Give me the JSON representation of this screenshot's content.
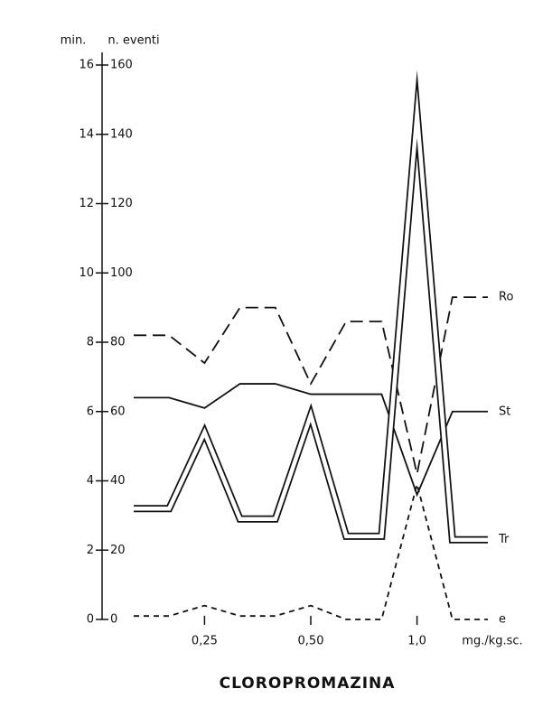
{
  "chart_data": {
    "type": "line",
    "title": "CLOROPROMAZINA",
    "y_label": "min.",
    "y2_label": "n. eventi",
    "x_label": "mg./kg.sc.",
    "categories": [
      null,
      null,
      "0,25",
      null,
      null,
      "0,50",
      null,
      null,
      "1,0",
      null,
      null
    ],
    "ylim": [
      0,
      16
    ],
    "yticks": [
      0,
      2,
      4,
      6,
      8,
      10,
      12,
      14,
      16
    ],
    "y2lim": [
      0,
      160
    ],
    "y2ticks": [
      0,
      20,
      40,
      60,
      80,
      100,
      120,
      140,
      160
    ],
    "series": [
      {
        "name": "Ro",
        "color": "#111111",
        "style": "dashed",
        "values": [
          8.2,
          8.2,
          7.4,
          9.0,
          9.0,
          6.8,
          8.6,
          8.6,
          4.2,
          9.3,
          9.3
        ]
      },
      {
        "name": "St",
        "color": "#111111",
        "style": "solid",
        "values": [
          6.4,
          6.4,
          6.1,
          6.8,
          6.8,
          6.5,
          6.5,
          6.5,
          3.6,
          6.0,
          6.0
        ]
      },
      {
        "name": "Tr",
        "color": "#111111",
        "style": "double",
        "values": [
          3.2,
          3.2,
          5.4,
          2.9,
          2.9,
          5.9,
          2.4,
          2.4,
          14.6,
          2.3,
          2.3
        ]
      },
      {
        "name": "e",
        "color": "#111111",
        "style": "dotted",
        "values": [
          0.1,
          0.1,
          0.4,
          0.1,
          0.1,
          0.4,
          0.0,
          0.0,
          3.9,
          0.0,
          0.0
        ]
      }
    ]
  }
}
